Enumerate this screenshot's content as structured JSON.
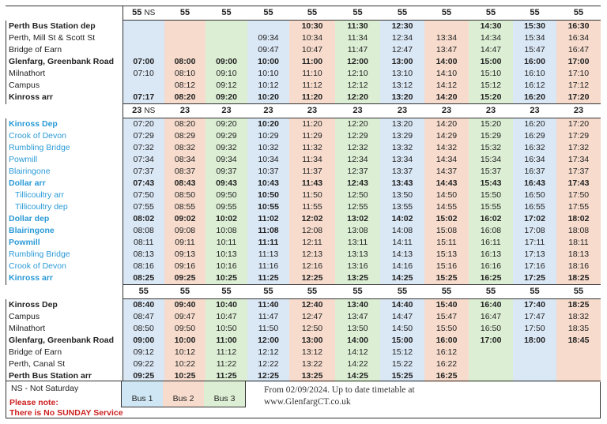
{
  "colors": {
    "bus1": "#dae7f5",
    "bus2": "#f7dccd",
    "bus3": "#dcefd4",
    "stop_blue": "#2a9ad6",
    "note_red": "#cc1f1f"
  },
  "sections": [
    {
      "route_headers": [
        {
          "num": "55",
          "suffix": "NS"
        },
        {
          "num": "55"
        },
        {
          "num": "55"
        },
        {
          "num": "55"
        },
        {
          "num": "55"
        },
        {
          "num": "55"
        },
        {
          "num": "55"
        },
        {
          "num": "55"
        },
        {
          "num": "55"
        },
        {
          "num": "55"
        },
        {
          "num": "55"
        }
      ],
      "stops": [
        {
          "name": "Perth Bus Station dep",
          "bold": true,
          "times": [
            "",
            "",
            "",
            "",
            "10:30",
            "11:30",
            "12:30",
            "",
            "14:30",
            "15:30",
            "16:30"
          ]
        },
        {
          "name": "Perth, Mill St & Scott St",
          "times": [
            "",
            "",
            "",
            "09:34",
            "10:34",
            "11:34",
            "12:34",
            "13:34",
            "14:34",
            "15:34",
            "16:34"
          ]
        },
        {
          "name": "Bridge of Earn",
          "times": [
            "",
            "",
            "",
            "09:47",
            "10:47",
            "11:47",
            "12:47",
            "13:47",
            "14:47",
            "15:47",
            "16:47"
          ]
        },
        {
          "name": "Glenfarg, Greenbank Road",
          "bold": true,
          "times": [
            "07:00",
            "08:00",
            "09:00",
            "10:00",
            "11:00",
            "12:00",
            "13:00",
            "14:00",
            "15:00",
            "16:00",
            "17:00"
          ]
        },
        {
          "name": "Milnathort",
          "times": [
            "07:10",
            "08:10",
            "09:10",
            "10:10",
            "11:10",
            "12:10",
            "13:10",
            "14:10",
            "15:10",
            "16:10",
            "17:10"
          ]
        },
        {
          "name": "Campus",
          "times": [
            "",
            "08:12",
            "09:12",
            "10:12",
            "11:12",
            "12:12",
            "13:12",
            "14:12",
            "15:12",
            "16:12",
            "17:12"
          ]
        },
        {
          "name": "Kinross arr",
          "bold": true,
          "times": [
            "07:17",
            "08:20",
            "09:20",
            "10:20",
            "11:20",
            "12:20",
            "13:20",
            "14:20",
            "15:20",
            "16:20",
            "17:20"
          ]
        }
      ]
    },
    {
      "route_headers": [
        {
          "num": "23",
          "suffix": "NS"
        },
        {
          "num": "23"
        },
        {
          "num": "23"
        },
        {
          "num": "23"
        },
        {
          "num": "23"
        },
        {
          "num": "23"
        },
        {
          "num": "23"
        },
        {
          "num": "23"
        },
        {
          "num": "23"
        },
        {
          "num": "23"
        },
        {
          "num": "23"
        }
      ],
      "stops": [
        {
          "name": "Kinross Dep",
          "bold": true,
          "blue": true,
          "times": [
            "07:20",
            "08:20",
            "09:20",
            "10:20",
            "11:20",
            "12:20",
            "13:20",
            "14:20",
            "15:20",
            "16:20",
            "17:20"
          ],
          "bold_cols": [
            3
          ]
        },
        {
          "name": "Crook of Devon",
          "blue": true,
          "times": [
            "07:29",
            "08:29",
            "09:29",
            "10:29",
            "11:29",
            "12:29",
            "13:29",
            "14:29",
            "15:29",
            "16:29",
            "17:29"
          ]
        },
        {
          "name": "Rumbling Bridge",
          "blue": true,
          "times": [
            "07:32",
            "08:32",
            "09:32",
            "10:32",
            "11:32",
            "12:32",
            "13:32",
            "14:32",
            "15:32",
            "16:32",
            "17:32"
          ]
        },
        {
          "name": "Powmill",
          "blue": true,
          "times": [
            "07:34",
            "08:34",
            "09:34",
            "10:34",
            "11:34",
            "12:34",
            "13:34",
            "14:34",
            "15:34",
            "16:34",
            "17:34"
          ]
        },
        {
          "name": "Blairingone",
          "blue": true,
          "times": [
            "07:37",
            "08:37",
            "09:37",
            "10:37",
            "11:37",
            "12:37",
            "13:37",
            "14:37",
            "15:37",
            "16:37",
            "17:37"
          ]
        },
        {
          "name": "Dollar arr",
          "bold": true,
          "blue": true,
          "bold_times": true,
          "times": [
            "07:43",
            "08:43",
            "09:43",
            "10:43",
            "11:43",
            "12:43",
            "13:43",
            "14:43",
            "15:43",
            "16:43",
            "17:43"
          ]
        },
        {
          "name": "Tillicoultry arr",
          "blue": true,
          "indent": true,
          "times": [
            "07:50",
            "08:50",
            "09:50",
            "10:50",
            "11:50",
            "12:50",
            "13:50",
            "14:50",
            "15:50",
            "16:50",
            "17:50"
          ],
          "bold_cols": [
            3
          ]
        },
        {
          "name": "Tillicoultry dep",
          "blue": true,
          "indent": true,
          "times": [
            "07:55",
            "08:55",
            "09:55",
            "10:55",
            "11:55",
            "12:55",
            "13:55",
            "14:55",
            "15:55",
            "16:55",
            "17:55"
          ],
          "bold_cols": [
            3
          ]
        },
        {
          "name": "Dollar dep",
          "bold": true,
          "blue": true,
          "bold_times": true,
          "times": [
            "08:02",
            "09:02",
            "10:02",
            "11:02",
            "12:02",
            "13:02",
            "14:02",
            "15:02",
            "16:02",
            "17:02",
            "18:02"
          ]
        },
        {
          "name": "Blairingone",
          "bold": true,
          "blue": true,
          "times": [
            "08:08",
            "09:08",
            "10:08",
            "11:08",
            "12:08",
            "13:08",
            "14:08",
            "15:08",
            "16:08",
            "17:08",
            "18:08"
          ],
          "bold_cols": [
            3
          ]
        },
        {
          "name": "Powmill",
          "bold": true,
          "blue": true,
          "times": [
            "08:11",
            "09:11",
            "10:11",
            "11:11",
            "12:11",
            "13:11",
            "14:11",
            "15:11",
            "16:11",
            "17:11",
            "18:11"
          ],
          "bold_cols": [
            3
          ]
        },
        {
          "name": "Rumbling Bridge",
          "blue": true,
          "times": [
            "08:13",
            "09:13",
            "10:13",
            "11:13",
            "12:13",
            "13:13",
            "14:13",
            "15:13",
            "16:13",
            "17:13",
            "18:13"
          ]
        },
        {
          "name": "Crook of Devon",
          "blue": true,
          "times": [
            "08:16",
            "09:16",
            "10:16",
            "11:16",
            "12:16",
            "13:16",
            "14:16",
            "15:16",
            "16:16",
            "17:16",
            "18:16"
          ]
        },
        {
          "name": "Kinross arr",
          "bold": true,
          "blue": true,
          "bold_times": true,
          "times": [
            "08:25",
            "09:25",
            "10:25",
            "11:25",
            "12:25",
            "13:25",
            "14:25",
            "15:25",
            "16:25",
            "17:25",
            "18:25"
          ]
        }
      ]
    },
    {
      "route_headers": [
        {
          "num": "55"
        },
        {
          "num": "55"
        },
        {
          "num": "55"
        },
        {
          "num": "55"
        },
        {
          "num": "55"
        },
        {
          "num": "55"
        },
        {
          "num": "55"
        },
        {
          "num": "55"
        },
        {
          "num": "55"
        },
        {
          "num": "55"
        },
        {
          "num": "55"
        }
      ],
      "stops": [
        {
          "name": "Kinross Dep",
          "bold": true,
          "times": [
            "08:40",
            "09:40",
            "10:40",
            "11:40",
            "12:40",
            "13:40",
            "14:40",
            "15:40",
            "16:40",
            "17:40",
            "18:25"
          ]
        },
        {
          "name": "Campus",
          "times": [
            "08:47",
            "09:47",
            "10:47",
            "11:47",
            "12:47",
            "13:47",
            "14:47",
            "15:47",
            "16:47",
            "17:47",
            "18:32"
          ]
        },
        {
          "name": "Milnathort",
          "times": [
            "08:50",
            "09:50",
            "10:50",
            "11:50",
            "12:50",
            "13:50",
            "14:50",
            "15:50",
            "16:50",
            "17:50",
            "18:35"
          ]
        },
        {
          "name": "Glenfarg, Greenbank Road",
          "bold": true,
          "times": [
            "09:00",
            "10:00",
            "11:00",
            "12:00",
            "13:00",
            "14:00",
            "15:00",
            "16:00",
            "17:00",
            "18:00",
            "18:45"
          ]
        },
        {
          "name": "Bridge of Earn",
          "times": [
            "09:12",
            "10:12",
            "11:12",
            "12:12",
            "13:12",
            "14:12",
            "15:12",
            "16:12",
            "",
            "",
            ""
          ]
        },
        {
          "name": "Perth, Canal St",
          "times": [
            "09:22",
            "10:22",
            "11:22",
            "12:22",
            "13:22",
            "14:22",
            "15:22",
            "16:22",
            "",
            "",
            ""
          ]
        },
        {
          "name": "Perth Bus Station  arr",
          "bold": true,
          "times": [
            "09:25",
            "10:25",
            "11:25",
            "12:25",
            "13:25",
            "14:25",
            "15:25",
            "16:25",
            "",
            "",
            ""
          ]
        }
      ]
    }
  ],
  "footer": {
    "ns_note": "NS - Not Saturday",
    "please_note": "Please note:",
    "sunday_note": "There is No SUNDAY Service",
    "legend": [
      "Bus 1",
      "Bus 2",
      "Bus 3"
    ],
    "info_line1": "From 02/09/2024. Up to date timetable at",
    "info_line2": "www.GlenfargCT.co.uk"
  }
}
